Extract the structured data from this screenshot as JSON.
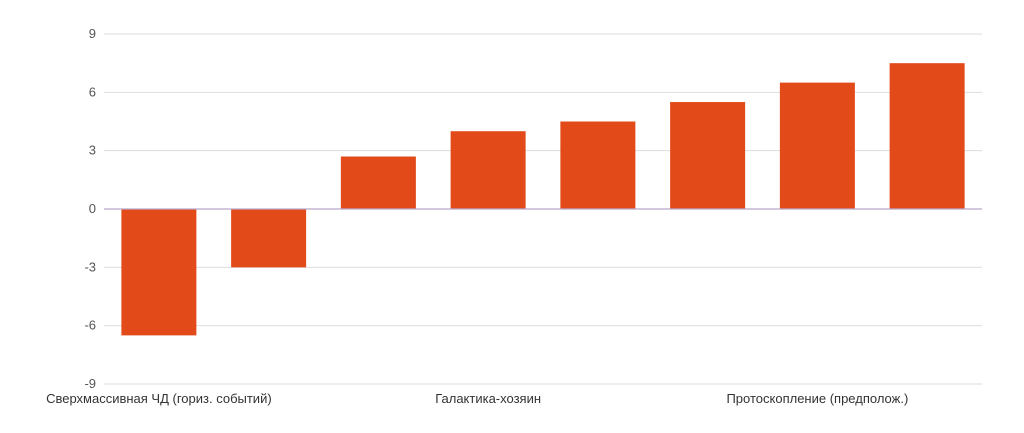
{
  "chart_data": {
    "type": "bar",
    "categories": [
      "Сверхмассивная ЧД (гориз. событий)",
      "",
      "",
      "Галактика-хозяин",
      "",
      "",
      "Протоскопление (предполож.)",
      ""
    ],
    "values": [
      -6.5,
      -3.0,
      2.7,
      4.0,
      4.5,
      5.5,
      6.5,
      7.5
    ],
    "ylim": [
      -9,
      9
    ],
    "yticks": [
      9,
      6,
      3,
      0,
      -3,
      -6,
      -9
    ],
    "title": "",
    "xlabel": "",
    "ylabel": "",
    "grid": true,
    "bar_color": "#e34a1a",
    "grid_color": "#dddddd",
    "zero_line_color": "#b9a9c9"
  }
}
